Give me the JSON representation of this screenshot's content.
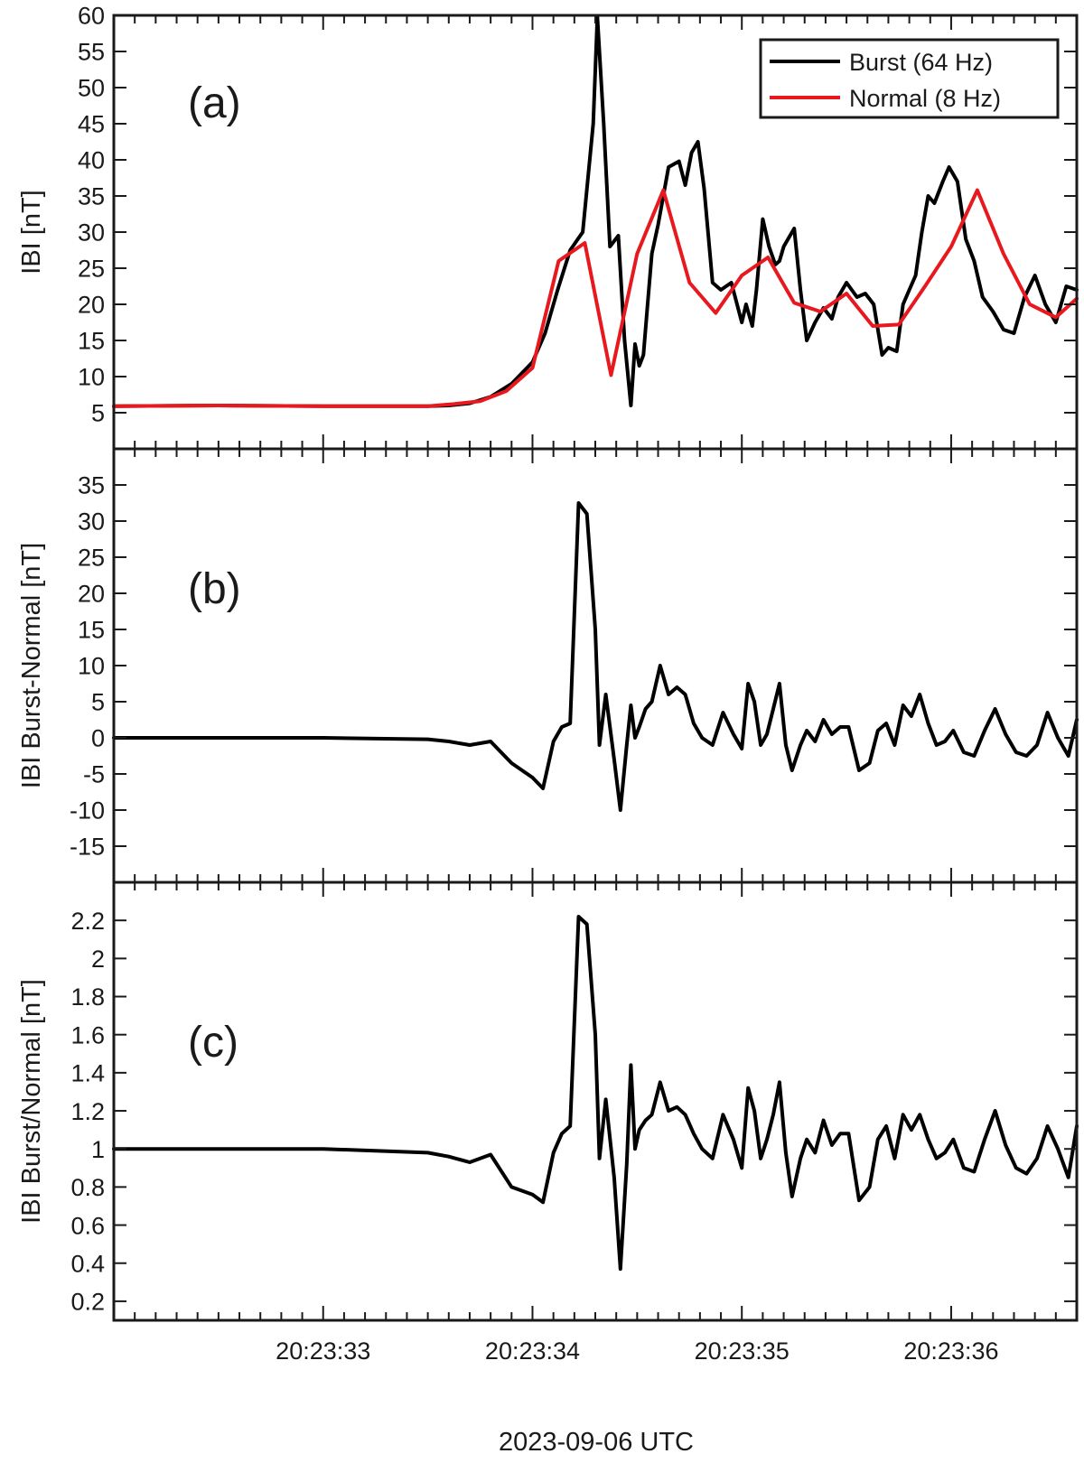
{
  "figure": {
    "xlabel": "2023-09-06 UTC",
    "x_tick_labels": [
      "20:23:33",
      "20:23:34",
      "20:23:35",
      "20:23:36"
    ]
  },
  "chart_data": [
    {
      "type": "line",
      "panel_label": "(a)",
      "ylabel": "IBI [nT]",
      "xlabel": "2023-09-06 UTC",
      "x_unit": "seconds after 20:23:32",
      "xlim": [
        0.0,
        4.6
      ],
      "ylim": [
        0,
        60
      ],
      "yticks": [
        5,
        10,
        15,
        20,
        25,
        30,
        35,
        40,
        45,
        50,
        55,
        60
      ],
      "legend": {
        "placement": "top-right",
        "entries": [
          "Burst (64 Hz)",
          "Normal (8 Hz)"
        ]
      },
      "series": [
        {
          "name": "Burst (64 Hz)",
          "color": "#000000",
          "x": [
            0.0,
            0.5,
            1.0,
            1.5,
            1.6,
            1.7,
            1.8,
            1.9,
            2.0,
            2.06,
            2.12,
            2.18,
            2.24,
            2.29,
            2.31,
            2.34,
            2.37,
            2.41,
            2.44,
            2.47,
            2.49,
            2.51,
            2.53,
            2.55,
            2.57,
            2.6,
            2.65,
            2.7,
            2.73,
            2.76,
            2.79,
            2.82,
            2.86,
            2.9,
            2.95,
            3.0,
            3.02,
            3.05,
            3.07,
            3.1,
            3.13,
            3.16,
            3.18,
            3.2,
            3.22,
            3.25,
            3.28,
            3.31,
            3.35,
            3.39,
            3.43,
            3.46,
            3.5,
            3.55,
            3.59,
            3.63,
            3.67,
            3.7,
            3.74,
            3.77,
            3.8,
            3.83,
            3.86,
            3.89,
            3.92,
            3.96,
            3.99,
            4.03,
            4.07,
            4.11,
            4.15,
            4.2,
            4.25,
            4.3,
            4.35,
            4.4,
            4.45,
            4.5,
            4.55,
            4.6
          ],
          "values": [
            5.9,
            6.0,
            5.9,
            5.9,
            6.0,
            6.3,
            7.2,
            9.0,
            12.0,
            16.0,
            22.0,
            27.5,
            30.0,
            45.0,
            59.8,
            45.0,
            28.0,
            29.5,
            15.0,
            6.0,
            14.5,
            11.5,
            13.0,
            20.0,
            27.0,
            31.0,
            39.0,
            39.8,
            36.5,
            41.0,
            42.5,
            36.0,
            23.0,
            22.0,
            23.0,
            17.5,
            20.0,
            17.0,
            22.0,
            31.8,
            28.0,
            25.5,
            26.0,
            28.0,
            29.0,
            30.5,
            22.0,
            15.0,
            17.5,
            19.5,
            18.0,
            21.0,
            23.0,
            21.0,
            21.5,
            20.0,
            13.0,
            14.0,
            13.5,
            20.0,
            22.0,
            24.0,
            30.0,
            35.0,
            34.0,
            37.0,
            39.0,
            37.0,
            29.0,
            26.0,
            21.0,
            19.0,
            16.5,
            16.0,
            21.0,
            24.0,
            20.0,
            17.5,
            22.5,
            22.0
          ]
        },
        {
          "name": "Normal (8 Hz)",
          "color": "#e8191e",
          "x": [
            0.0,
            0.5,
            1.0,
            1.5,
            1.625,
            1.75,
            1.875,
            2.0,
            2.125,
            2.25,
            2.375,
            2.5,
            2.625,
            2.75,
            2.875,
            3.0,
            3.125,
            3.25,
            3.375,
            3.5,
            3.625,
            3.75,
            3.875,
            4.0,
            4.125,
            4.25,
            4.375,
            4.5,
            4.6
          ],
          "values": [
            5.9,
            6.0,
            5.9,
            5.9,
            6.2,
            6.6,
            8.0,
            11.2,
            26.0,
            28.5,
            10.2,
            27.0,
            35.8,
            23.0,
            18.8,
            24.0,
            26.5,
            20.2,
            19.0,
            21.5,
            17.0,
            17.2,
            22.5,
            28.0,
            35.8,
            27.0,
            20.0,
            18.2,
            20.8
          ]
        }
      ]
    },
    {
      "type": "line",
      "panel_label": "(b)",
      "ylabel": "IBI Burst-Normal [nT]",
      "xlabel": "2023-09-06 UTC",
      "x_unit": "seconds after 20:23:32",
      "xlim": [
        0.0,
        4.6
      ],
      "ylim": [
        -20,
        40
      ],
      "yticks": [
        -15,
        -10,
        -5,
        0,
        5,
        10,
        15,
        20,
        25,
        30,
        35
      ],
      "series": [
        {
          "name": "",
          "color": "#000000",
          "x": [
            0.0,
            0.5,
            1.0,
            1.5,
            1.6,
            1.7,
            1.8,
            1.9,
            2.0,
            2.05,
            2.1,
            2.14,
            2.18,
            2.22,
            2.26,
            2.3,
            2.32,
            2.35,
            2.39,
            2.42,
            2.45,
            2.47,
            2.49,
            2.51,
            2.54,
            2.57,
            2.61,
            2.65,
            2.69,
            2.73,
            2.77,
            2.81,
            2.86,
            2.91,
            2.96,
            3.0,
            3.03,
            3.06,
            3.09,
            3.12,
            3.15,
            3.18,
            3.21,
            3.24,
            3.28,
            3.31,
            3.35,
            3.39,
            3.43,
            3.47,
            3.51,
            3.56,
            3.61,
            3.65,
            3.69,
            3.73,
            3.77,
            3.81,
            3.85,
            3.89,
            3.93,
            3.97,
            4.01,
            4.06,
            4.11,
            4.16,
            4.21,
            4.26,
            4.31,
            4.36,
            4.41,
            4.46,
            4.51,
            4.56,
            4.6
          ],
          "values": [
            0.0,
            0.0,
            0.0,
            -0.2,
            -0.5,
            -1.0,
            -0.5,
            -3.5,
            -5.5,
            -7.0,
            -0.5,
            1.5,
            2.0,
            32.5,
            31.0,
            15.0,
            -1.0,
            6.0,
            -3.0,
            -10.0,
            -1.0,
            4.5,
            0.0,
            1.5,
            4.0,
            5.0,
            10.0,
            6.0,
            7.0,
            6.0,
            2.0,
            0.0,
            -1.0,
            3.5,
            0.5,
            -1.5,
            7.5,
            5.0,
            -1.0,
            0.5,
            4.0,
            7.5,
            -1.0,
            -4.5,
            -1.0,
            1.0,
            -0.5,
            2.5,
            0.5,
            1.5,
            1.5,
            -4.5,
            -3.5,
            1.0,
            2.0,
            -1.0,
            4.5,
            3.0,
            6.0,
            2.0,
            -1.0,
            -0.5,
            1.0,
            -2.0,
            -2.5,
            1.0,
            4.0,
            0.5,
            -2.0,
            -2.5,
            -1.0,
            3.5,
            0.0,
            -2.5,
            2.5
          ]
        }
      ]
    },
    {
      "type": "line",
      "panel_label": "(c)",
      "ylabel": "IBI Burst/Normal [nT]",
      "xlabel": "2023-09-06 UTC",
      "x_unit": "seconds after 20:23:32",
      "xlim": [
        0.0,
        4.6
      ],
      "ylim": [
        0.1,
        2.4
      ],
      "yticks": [
        0.2,
        0.4,
        0.6,
        0.8,
        1,
        1.2,
        1.4,
        1.6,
        1.8,
        2,
        2.2
      ],
      "series": [
        {
          "name": "",
          "color": "#000000",
          "x": [
            0.0,
            0.5,
            1.0,
            1.5,
            1.6,
            1.7,
            1.8,
            1.9,
            2.0,
            2.05,
            2.1,
            2.14,
            2.18,
            2.22,
            2.26,
            2.3,
            2.32,
            2.35,
            2.39,
            2.42,
            2.45,
            2.47,
            2.49,
            2.51,
            2.54,
            2.57,
            2.61,
            2.65,
            2.69,
            2.73,
            2.77,
            2.81,
            2.86,
            2.91,
            2.96,
            3.0,
            3.03,
            3.06,
            3.09,
            3.12,
            3.15,
            3.18,
            3.21,
            3.24,
            3.28,
            3.31,
            3.35,
            3.39,
            3.43,
            3.47,
            3.51,
            3.56,
            3.61,
            3.65,
            3.69,
            3.73,
            3.77,
            3.81,
            3.85,
            3.89,
            3.93,
            3.97,
            4.01,
            4.06,
            4.11,
            4.16,
            4.21,
            4.26,
            4.31,
            4.36,
            4.41,
            4.46,
            4.51,
            4.56,
            4.6
          ],
          "values": [
            1.0,
            1.0,
            1.0,
            0.98,
            0.96,
            0.93,
            0.97,
            0.8,
            0.76,
            0.72,
            0.98,
            1.08,
            1.12,
            2.22,
            2.18,
            1.6,
            0.95,
            1.26,
            0.85,
            0.37,
            0.92,
            1.44,
            1.0,
            1.1,
            1.15,
            1.18,
            1.35,
            1.2,
            1.22,
            1.18,
            1.08,
            1.0,
            0.95,
            1.18,
            1.05,
            0.9,
            1.32,
            1.2,
            0.95,
            1.05,
            1.18,
            1.35,
            0.98,
            0.75,
            0.95,
            1.05,
            0.98,
            1.15,
            1.02,
            1.08,
            1.08,
            0.73,
            0.8,
            1.05,
            1.12,
            0.95,
            1.18,
            1.1,
            1.18,
            1.05,
            0.95,
            0.98,
            1.05,
            0.9,
            0.88,
            1.05,
            1.2,
            1.02,
            0.9,
            0.87,
            0.95,
            1.12,
            1.0,
            0.85,
            1.12
          ]
        }
      ]
    }
  ]
}
